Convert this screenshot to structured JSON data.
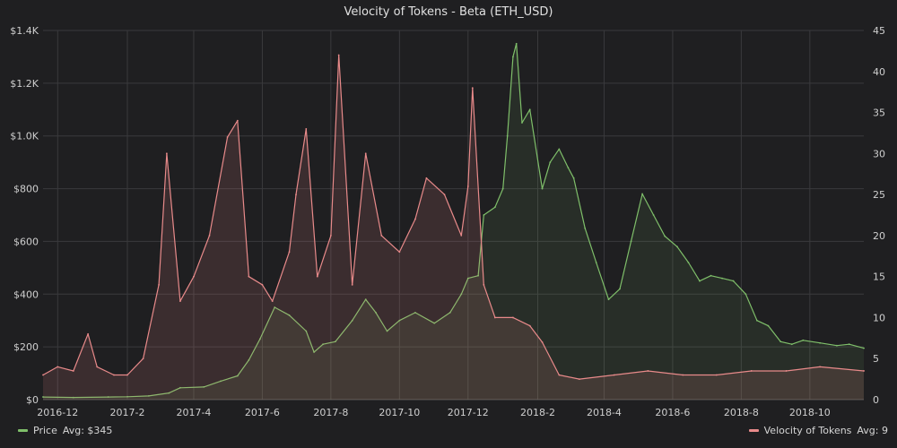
{
  "title": "Velocity of Tokens - Beta (ETH_USD)",
  "legend": {
    "price": {
      "label": "Price",
      "avg": "Avg: $345",
      "color": "#7fbf6a"
    },
    "velocity": {
      "label": "Velocity of Tokens",
      "avg": "Avg: 9",
      "color": "#e88a8a"
    }
  },
  "chart_data": {
    "type": "line",
    "title": "Velocity of Tokens - Beta (ETH_USD)",
    "x_domain": [
      "2016-11-18",
      "2018-11-18"
    ],
    "x_tick_labels": [
      "2016-12",
      "2017-2",
      "2017-4",
      "2017-6",
      "2017-8",
      "2017-10",
      "2017-12",
      "2018-2",
      "2018-4",
      "2018-6",
      "2018-8",
      "2018-10"
    ],
    "x_tick_dates": [
      "2016-12-01",
      "2017-02-01",
      "2017-04-01",
      "2017-06-01",
      "2017-08-01",
      "2017-10-01",
      "2017-12-01",
      "2018-02-01",
      "2018-04-01",
      "2018-06-01",
      "2018-08-01",
      "2018-10-01"
    ],
    "y_left": {
      "ylim": [
        0,
        1400
      ],
      "ticks": [
        "$0",
        "$200",
        "$400",
        "$600",
        "$800",
        "$1.0K",
        "$1.2K",
        "$1.4K"
      ],
      "tick_values": [
        0,
        200,
        400,
        600,
        800,
        1000,
        1200,
        1400
      ]
    },
    "y_right": {
      "ylim": [
        0,
        45
      ],
      "ticks": [
        "0",
        "5",
        "10",
        "15",
        "20",
        "25",
        "30",
        "35",
        "40",
        "45"
      ],
      "tick_values": [
        0,
        5,
        10,
        15,
        20,
        25,
        30,
        35,
        40,
        45
      ]
    },
    "grid": true,
    "legend_position": "bottom",
    "series": [
      {
        "name": "Price",
        "axis": "left",
        "color": "#7fbf6a",
        "points": [
          [
            "2016-11-18",
            10
          ],
          [
            "2016-12-15",
            8
          ],
          [
            "2017-01-15",
            10
          ],
          [
            "2017-02-01",
            11
          ],
          [
            "2017-02-20",
            14
          ],
          [
            "2017-03-10",
            25
          ],
          [
            "2017-03-20",
            45
          ],
          [
            "2017-04-10",
            48
          ],
          [
            "2017-04-25",
            70
          ],
          [
            "2017-05-10",
            90
          ],
          [
            "2017-05-20",
            150
          ],
          [
            "2017-05-30",
            230
          ],
          [
            "2017-06-12",
            350
          ],
          [
            "2017-06-25",
            320
          ],
          [
            "2017-07-10",
            260
          ],
          [
            "2017-07-17",
            180
          ],
          [
            "2017-07-25",
            210
          ],
          [
            "2017-08-05",
            220
          ],
          [
            "2017-08-20",
            300
          ],
          [
            "2017-09-01",
            380
          ],
          [
            "2017-09-10",
            330
          ],
          [
            "2017-09-20",
            260
          ],
          [
            "2017-10-01",
            300
          ],
          [
            "2017-10-15",
            330
          ],
          [
            "2017-11-01",
            290
          ],
          [
            "2017-11-15",
            330
          ],
          [
            "2017-11-25",
            400
          ],
          [
            "2017-12-01",
            460
          ],
          [
            "2017-12-10",
            470
          ],
          [
            "2017-12-15",
            700
          ],
          [
            "2017-12-25",
            730
          ],
          [
            "2018-01-01",
            800
          ],
          [
            "2018-01-05",
            1000
          ],
          [
            "2018-01-10",
            1300
          ],
          [
            "2018-01-13",
            1350
          ],
          [
            "2018-01-18",
            1050
          ],
          [
            "2018-01-25",
            1100
          ],
          [
            "2018-02-05",
            800
          ],
          [
            "2018-02-12",
            900
          ],
          [
            "2018-02-20",
            950
          ],
          [
            "2018-02-28",
            880
          ],
          [
            "2018-03-05",
            840
          ],
          [
            "2018-03-15",
            650
          ],
          [
            "2018-03-25",
            520
          ],
          [
            "2018-04-05",
            380
          ],
          [
            "2018-04-15",
            420
          ],
          [
            "2018-04-25",
            600
          ],
          [
            "2018-05-05",
            780
          ],
          [
            "2018-05-15",
            700
          ],
          [
            "2018-05-25",
            620
          ],
          [
            "2018-06-05",
            580
          ],
          [
            "2018-06-15",
            520
          ],
          [
            "2018-06-25",
            450
          ],
          [
            "2018-07-05",
            470
          ],
          [
            "2018-07-15",
            460
          ],
          [
            "2018-07-25",
            450
          ],
          [
            "2018-08-05",
            400
          ],
          [
            "2018-08-15",
            300
          ],
          [
            "2018-08-25",
            280
          ],
          [
            "2018-09-05",
            220
          ],
          [
            "2018-09-15",
            210
          ],
          [
            "2018-09-25",
            225
          ],
          [
            "2018-10-10",
            215
          ],
          [
            "2018-10-25",
            205
          ],
          [
            "2018-11-05",
            210
          ],
          [
            "2018-11-18",
            195
          ]
        ]
      },
      {
        "name": "Velocity of Tokens",
        "axis": "right",
        "color": "#e88a8a",
        "points": [
          [
            "2016-11-18",
            3
          ],
          [
            "2016-12-01",
            4
          ],
          [
            "2016-12-15",
            3.5
          ],
          [
            "2016-12-28",
            8
          ],
          [
            "2017-01-05",
            4
          ],
          [
            "2017-01-20",
            3
          ],
          [
            "2017-02-01",
            3
          ],
          [
            "2017-02-15",
            5
          ],
          [
            "2017-03-01",
            14
          ],
          [
            "2017-03-08",
            30
          ],
          [
            "2017-03-20",
            12
          ],
          [
            "2017-04-01",
            15
          ],
          [
            "2017-04-15",
            20
          ],
          [
            "2017-05-01",
            32
          ],
          [
            "2017-05-10",
            34
          ],
          [
            "2017-05-20",
            15
          ],
          [
            "2017-06-01",
            14
          ],
          [
            "2017-06-10",
            12
          ],
          [
            "2017-06-25",
            18
          ],
          [
            "2017-07-01",
            25
          ],
          [
            "2017-07-10",
            33
          ],
          [
            "2017-07-20",
            15
          ],
          [
            "2017-08-01",
            20
          ],
          [
            "2017-08-08",
            42
          ],
          [
            "2017-08-20",
            14
          ],
          [
            "2017-09-01",
            30
          ],
          [
            "2017-09-15",
            20
          ],
          [
            "2017-10-01",
            18
          ],
          [
            "2017-10-15",
            22
          ],
          [
            "2017-10-25",
            27
          ],
          [
            "2017-11-10",
            25
          ],
          [
            "2017-11-25",
            20
          ],
          [
            "2017-12-01",
            26
          ],
          [
            "2017-12-05",
            38
          ],
          [
            "2017-12-15",
            14
          ],
          [
            "2017-12-25",
            10
          ],
          [
            "2018-01-10",
            10
          ],
          [
            "2018-01-25",
            9
          ],
          [
            "2018-02-05",
            7
          ],
          [
            "2018-02-20",
            3
          ],
          [
            "2018-03-10",
            2.5
          ],
          [
            "2018-04-10",
            3
          ],
          [
            "2018-05-10",
            3.5
          ],
          [
            "2018-06-10",
            3
          ],
          [
            "2018-07-10",
            3
          ],
          [
            "2018-08-10",
            3.5
          ],
          [
            "2018-09-10",
            3.5
          ],
          [
            "2018-10-10",
            4
          ],
          [
            "2018-11-18",
            3.5
          ]
        ]
      }
    ]
  }
}
